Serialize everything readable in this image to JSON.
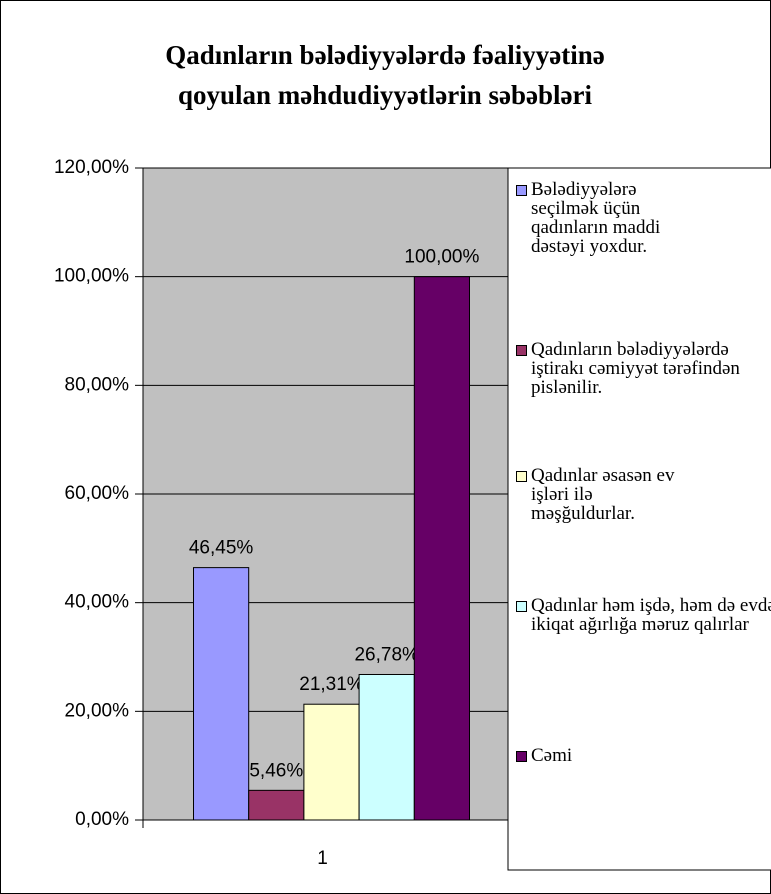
{
  "chart_data": {
    "type": "bar",
    "title": [
      "Qadınların bələdiyyələrdə fəaliyyətinə",
      "qoyulan  məhdudiyyətlərin səbəbləri"
    ],
    "categories": [
      "1"
    ],
    "series": [
      {
        "name": "Bələdiyyələrə seçilmək üçün qadınların maddi dəstəyi yoxdur.",
        "color": "#9999ff",
        "values": [
          46.45
        ],
        "value_labels": [
          "46,45%"
        ]
      },
      {
        "name": "Qadınların bələdiyyələrdə iştirakı cəmiyyət tərəfindən pislənilir.",
        "color": "#993366",
        "values": [
          5.46
        ],
        "value_labels": [
          "5,46%"
        ]
      },
      {
        "name": "Qadınlar əsasən ev işləri ilə məşğuldurlar.",
        "color": "#ffffcc",
        "values": [
          21.31
        ],
        "value_labels": [
          "21,31%"
        ]
      },
      {
        "name": "Qadınlar həm işdə, həm də evdə  ikiqat ağırlığa məruz qalırlar",
        "color": "#ccffff",
        "values": [
          26.78
        ],
        "value_labels": [
          "26,78%"
        ]
      },
      {
        "name": "Cəmi",
        "color": "#660066",
        "values": [
          100
        ],
        "value_labels": [
          "100,00%"
        ]
      }
    ],
    "ylim": [
      0,
      120
    ],
    "yticks": [
      {
        "value": 0,
        "label": "0,00%"
      },
      {
        "value": 20,
        "label": "20,00%"
      },
      {
        "value": 40,
        "label": "40,00%"
      },
      {
        "value": 60,
        "label": "60,00%"
      },
      {
        "value": 80,
        "label": "80,00%"
      },
      {
        "value": 100,
        "label": "100,00%"
      },
      {
        "value": 120,
        "label": "120,00%"
      }
    ],
    "grid": true,
    "plot_background": "#c0c0c0",
    "legend": "right"
  }
}
